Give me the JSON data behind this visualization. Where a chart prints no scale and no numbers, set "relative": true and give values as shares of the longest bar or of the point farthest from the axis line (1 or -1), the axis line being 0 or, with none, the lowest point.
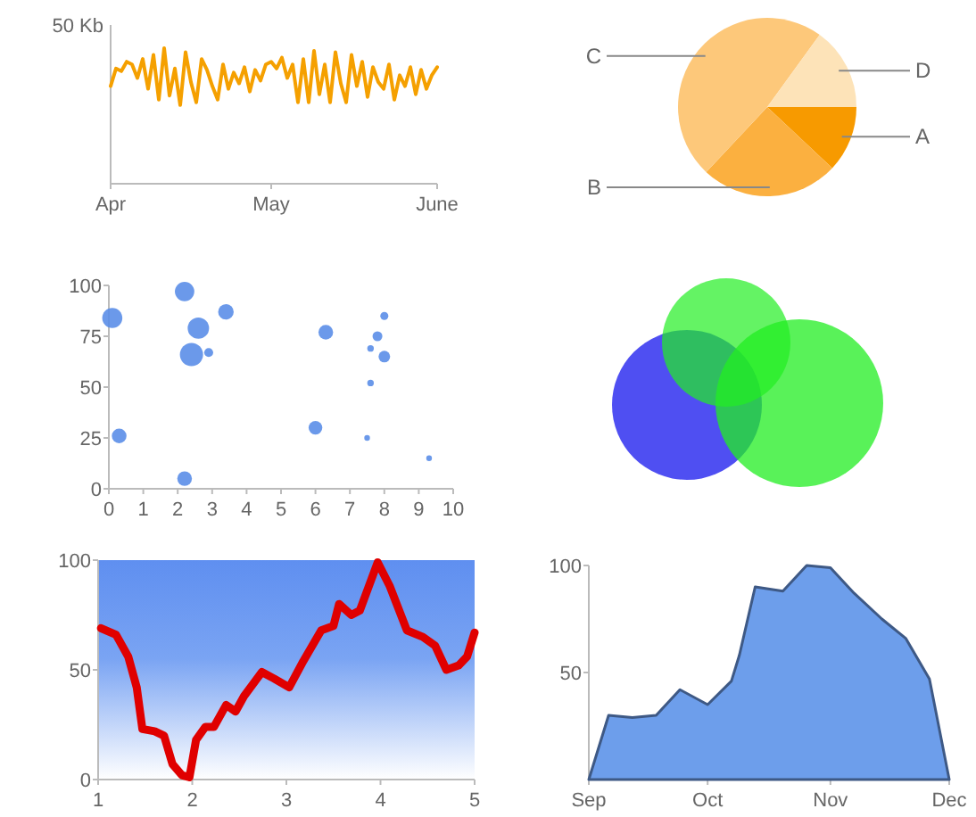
{
  "chart_data": [
    {
      "type": "line",
      "relative": true,
      "ylabel": "50 Kb",
      "color": "#f5a000",
      "xlim": [
        "--04-01",
        "--06-01"
      ],
      "xticks": [
        {
          "value": "--04-01",
          "label": "Apr"
        },
        {
          "value": "--05-01",
          "label": "May"
        },
        {
          "value": "--06-01",
          "label": "June"
        }
      ],
      "x": [
        "--04-01",
        "--04-02",
        "--04-03",
        "--04-04",
        "--04-05",
        "--04-06",
        "--04-07",
        "--04-08",
        "--04-09",
        "--04-10",
        "--04-11",
        "--04-12",
        "--04-13",
        "--04-14",
        "--04-15",
        "--04-16",
        "--04-17",
        "--04-18",
        "--04-19",
        "--04-20",
        "--04-21",
        "--04-22",
        "--04-23",
        "--04-24",
        "--04-25",
        "--04-26",
        "--04-27",
        "--04-28",
        "--04-29",
        "--04-30",
        "--05-01",
        "--05-02",
        "--05-03",
        "--05-04",
        "--05-05",
        "--05-06",
        "--05-07",
        "--05-08",
        "--05-09",
        "--05-10",
        "--05-11",
        "--05-12",
        "--05-13",
        "--05-14",
        "--05-15",
        "--05-16",
        "--05-17",
        "--05-18",
        "--05-19",
        "--05-20",
        "--05-21",
        "--05-22",
        "--05-23",
        "--05-24",
        "--05-25",
        "--05-26",
        "--05-27",
        "--05-28",
        "--05-29",
        "--05-30",
        "--05-31",
        "--06-01"
      ],
      "values": [
        0.72,
        0.85,
        0.83,
        0.9,
        0.88,
        0.78,
        0.92,
        0.7,
        0.95,
        0.62,
        1.0,
        0.65,
        0.85,
        0.58,
        0.97,
        0.75,
        0.6,
        0.92,
        0.84,
        0.72,
        0.62,
        0.88,
        0.7,
        0.82,
        0.74,
        0.86,
        0.68,
        0.84,
        0.76,
        0.88,
        0.9,
        0.85,
        0.93,
        0.78,
        0.88,
        0.6,
        0.92,
        0.6,
        0.98,
        0.66,
        0.88,
        0.6,
        0.97,
        0.74,
        0.6,
        0.95,
        0.72,
        0.9,
        0.64,
        0.86,
        0.75,
        0.7,
        0.88,
        0.62,
        0.8,
        0.72,
        0.86,
        0.66,
        0.84,
        0.7,
        0.8,
        0.86
      ]
    },
    {
      "type": "pie",
      "categories": [
        "A",
        "B",
        "C",
        "D"
      ],
      "values": [
        12,
        25,
        48,
        15
      ],
      "colors": [
        "#f79a00",
        "#fbb040",
        "#fdc87a",
        "#fde3b8"
      ]
    },
    {
      "type": "bubble",
      "color": "#5b8ee8",
      "xlim": [
        0,
        10
      ],
      "xticks": [
        0,
        1,
        2,
        3,
        4,
        5,
        6,
        7,
        8,
        9,
        10
      ],
      "ylim": [
        0,
        100
      ],
      "yticks": [
        0,
        25,
        50,
        75,
        100
      ],
      "x": [
        0.1,
        2.2,
        2.6,
        2.4,
        2.9,
        3.4,
        0.3,
        2.2,
        6.0,
        6.3,
        8.0,
        7.8,
        7.6,
        8.0,
        7.6,
        7.5,
        9.3
      ],
      "values": [
        84,
        97,
        79,
        66,
        67,
        87,
        26,
        5,
        30,
        77,
        85,
        75,
        69,
        65,
        52,
        25,
        15
      ],
      "sizes": [
        0.75,
        0.7,
        0.85,
        1.0,
        0.15,
        0.45,
        0.4,
        0.4,
        0.35,
        0.4,
        0.12,
        0.18,
        0.08,
        0.25,
        0.08,
        0.06,
        0.06
      ]
    },
    {
      "type": "line",
      "color": "#e00000",
      "xlim": [
        1,
        5
      ],
      "xticks": [
        1,
        2,
        3,
        4,
        5
      ],
      "ylim": [
        0,
        100
      ],
      "yticks": [
        0,
        50,
        100
      ],
      "x": [
        1.03,
        1.19,
        1.32,
        1.41,
        1.47,
        1.6,
        1.7,
        1.79,
        1.89,
        1.97,
        2.04,
        2.14,
        2.23,
        2.36,
        2.46,
        2.55,
        2.74,
        2.87,
        3.03,
        3.18,
        3.37,
        3.5,
        3.56,
        3.69,
        3.78,
        3.97,
        4.1,
        4.28,
        4.45,
        4.58,
        4.7,
        4.83,
        4.92,
        5
      ],
      "values": [
        69,
        66,
        56,
        42,
        23,
        22,
        20,
        7,
        2,
        1,
        18,
        24,
        24,
        34,
        31,
        38,
        49,
        46,
        42,
        54,
        68,
        70,
        80,
        75,
        77,
        99,
        88,
        68,
        65,
        61,
        50,
        52,
        56,
        67
      ]
    },
    {
      "type": "area",
      "color": "#6d9eeb",
      "xlim": [
        "--09-01",
        "--12-01"
      ],
      "xticks": [
        {
          "value": "--09-01",
          "label": "Sep"
        },
        {
          "value": "--10-01",
          "label": "Oct"
        },
        {
          "value": "--11-01",
          "label": "Nov"
        },
        {
          "value": "--12-01",
          "label": "Dec"
        }
      ],
      "ylim": [
        0,
        100
      ],
      "yticks": [
        50,
        100
      ],
      "x": [
        "--09-01",
        "--09-06",
        "--09-12",
        "--09-18",
        "--09-24",
        "--10-01",
        "--10-07",
        "--10-09",
        "--10-13",
        "--10-20",
        "--10-26",
        "--11-01",
        "--11-07",
        "--11-14",
        "--11-20",
        "--11-26",
        "--12-01"
      ],
      "values": [
        0,
        30,
        29,
        30,
        42,
        35,
        46,
        58,
        90,
        88,
        100,
        99,
        87,
        75,
        66,
        47,
        0
      ]
    }
  ]
}
